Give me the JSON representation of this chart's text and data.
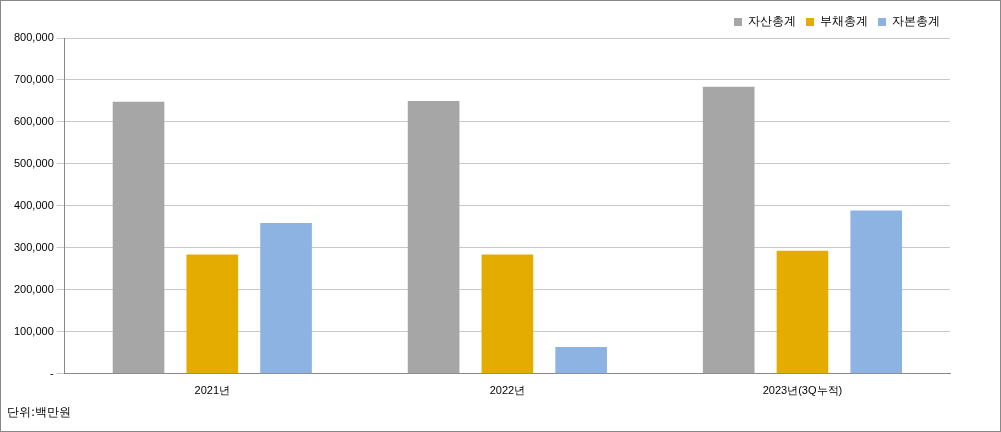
{
  "chart_data": {
    "type": "bar",
    "categories": [
      "2021년",
      "2022년",
      "2023년(3Q누적)"
    ],
    "series": [
      {
        "name": "자산총계",
        "color": "#a6a6a6",
        "values": [
          648000,
          650000,
          684000
        ]
      },
      {
        "name": "부채총계",
        "color": "#e5ac00",
        "values": [
          284000,
          284000,
          293000
        ]
      },
      {
        "name": "자본총계",
        "color": "#8db3e2",
        "values": [
          359000,
          64000,
          389000
        ]
      }
    ],
    "ylim": [
      0,
      800000
    ],
    "yticks": [
      {
        "value": 0,
        "label": "-"
      },
      {
        "value": 100000,
        "label": "100,000"
      },
      {
        "value": 200000,
        "label": "200,000"
      },
      {
        "value": 300000,
        "label": "300,000"
      },
      {
        "value": 400000,
        "label": "400,000"
      },
      {
        "value": 500000,
        "label": "500,000"
      },
      {
        "value": 600000,
        "label": "600,000"
      },
      {
        "value": 700000,
        "label": "700,000"
      },
      {
        "value": 800000,
        "label": "800,000"
      }
    ],
    "grid": "y",
    "legend": "top right",
    "annotations": [
      "단위:백만원"
    ]
  }
}
